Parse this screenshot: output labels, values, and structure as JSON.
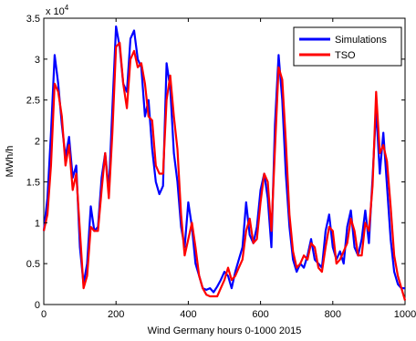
{
  "chart_data": {
    "type": "line",
    "xlabel": "Wind Germany hours 0-1000 2015",
    "ylabel": "MWh/h",
    "y_exponent_label": "x 10",
    "y_exponent_power": "4",
    "xlim": [
      0,
      1000
    ],
    "ylim": [
      0,
      3.5
    ],
    "x_ticks": [
      0,
      200,
      400,
      600,
      800,
      1000
    ],
    "y_ticks": [
      0,
      0.5,
      1,
      1.5,
      2,
      2.5,
      3,
      3.5
    ],
    "x_tick_labels": [
      "0",
      "200",
      "400",
      "600",
      "800",
      "1000"
    ],
    "y_tick_labels": [
      "0",
      "0.5",
      "1",
      "1.5",
      "2",
      "2.5",
      "3",
      "3.5"
    ],
    "grid": false,
    "legend_position": "top-right",
    "series": [
      {
        "name": "Simulations",
        "color": "#0000ff",
        "x": [
          0,
          10,
          20,
          30,
          40,
          50,
          60,
          70,
          80,
          90,
          100,
          110,
          120,
          130,
          140,
          150,
          160,
          170,
          180,
          190,
          200,
          210,
          220,
          230,
          240,
          250,
          260,
          270,
          280,
          290,
          300,
          310,
          320,
          330,
          340,
          350,
          360,
          370,
          380,
          390,
          400,
          410,
          420,
          430,
          440,
          450,
          460,
          470,
          480,
          490,
          500,
          510,
          520,
          530,
          540,
          550,
          560,
          570,
          580,
          590,
          600,
          610,
          620,
          630,
          640,
          650,
          660,
          670,
          680,
          690,
          700,
          710,
          720,
          730,
          740,
          750,
          760,
          770,
          780,
          790,
          800,
          810,
          820,
          830,
          840,
          850,
          860,
          870,
          880,
          890,
          900,
          910,
          920,
          930,
          940,
          950,
          960,
          970,
          980,
          990,
          1000
        ],
        "values": [
          0.9,
          1.3,
          2.1,
          3.05,
          2.7,
          2.2,
          1.8,
          2.05,
          1.55,
          1.7,
          0.7,
          0.25,
          0.5,
          1.2,
          0.9,
          0.95,
          1.55,
          1.85,
          1.4,
          2.4,
          3.4,
          3.15,
          2.7,
          2.6,
          3.25,
          3.35,
          3.0,
          2.9,
          2.3,
          2.5,
          1.9,
          1.5,
          1.35,
          1.45,
          2.95,
          2.65,
          1.85,
          1.5,
          0.95,
          0.7,
          1.25,
          0.95,
          0.5,
          0.35,
          0.2,
          0.18,
          0.2,
          0.15,
          0.22,
          0.3,
          0.4,
          0.35,
          0.2,
          0.4,
          0.55,
          0.7,
          1.25,
          0.85,
          0.75,
          0.95,
          1.4,
          1.6,
          1.3,
          0.7,
          2.2,
          3.05,
          2.5,
          1.6,
          0.95,
          0.55,
          0.4,
          0.5,
          0.45,
          0.6,
          0.8,
          0.55,
          0.5,
          0.45,
          0.9,
          1.1,
          0.7,
          0.55,
          0.65,
          0.5,
          0.95,
          1.15,
          0.7,
          0.6,
          0.8,
          1.15,
          0.75,
          1.55,
          2.4,
          1.6,
          2.1,
          1.45,
          0.8,
          0.4,
          0.25,
          0.2,
          0.2
        ]
      },
      {
        "name": "TSO",
        "color": "#ff0000",
        "x": [
          0,
          10,
          20,
          30,
          40,
          50,
          60,
          70,
          80,
          90,
          100,
          110,
          120,
          130,
          140,
          150,
          160,
          170,
          180,
          190,
          200,
          210,
          220,
          230,
          240,
          250,
          260,
          270,
          280,
          290,
          300,
          310,
          320,
          330,
          340,
          350,
          360,
          370,
          380,
          390,
          400,
          410,
          420,
          430,
          440,
          450,
          460,
          470,
          480,
          490,
          500,
          510,
          520,
          530,
          540,
          550,
          560,
          570,
          580,
          590,
          600,
          610,
          620,
          630,
          640,
          650,
          660,
          670,
          680,
          690,
          700,
          710,
          720,
          730,
          740,
          750,
          760,
          770,
          780,
          790,
          800,
          810,
          820,
          830,
          840,
          850,
          860,
          870,
          880,
          890,
          900,
          910,
          920,
          930,
          940,
          950,
          960,
          970,
          980,
          990,
          1000
        ],
        "values": [
          0.9,
          1.1,
          1.7,
          2.7,
          2.6,
          2.3,
          1.7,
          1.95,
          1.4,
          1.6,
          0.9,
          0.2,
          0.35,
          0.95,
          0.9,
          0.9,
          1.4,
          1.85,
          1.3,
          2.1,
          3.15,
          3.2,
          2.7,
          2.4,
          3.0,
          3.1,
          2.9,
          2.95,
          2.7,
          2.3,
          2.25,
          1.7,
          1.6,
          1.6,
          2.5,
          2.8,
          2.3,
          1.9,
          1.1,
          0.6,
          0.8,
          1.0,
          0.7,
          0.35,
          0.2,
          0.12,
          0.1,
          0.1,
          0.1,
          0.2,
          0.3,
          0.45,
          0.3,
          0.35,
          0.45,
          0.55,
          0.9,
          1.05,
          0.75,
          0.8,
          1.25,
          1.6,
          1.5,
          0.9,
          1.9,
          2.9,
          2.75,
          2.0,
          1.1,
          0.65,
          0.45,
          0.5,
          0.6,
          0.55,
          0.75,
          0.7,
          0.45,
          0.4,
          0.7,
          0.95,
          0.9,
          0.5,
          0.55,
          0.65,
          0.75,
          1.05,
          0.9,
          0.6,
          0.6,
          1.0,
          0.9,
          1.45,
          2.6,
          1.85,
          1.95,
          1.75,
          1.2,
          0.6,
          0.35,
          0.2,
          0.05
        ]
      }
    ]
  }
}
